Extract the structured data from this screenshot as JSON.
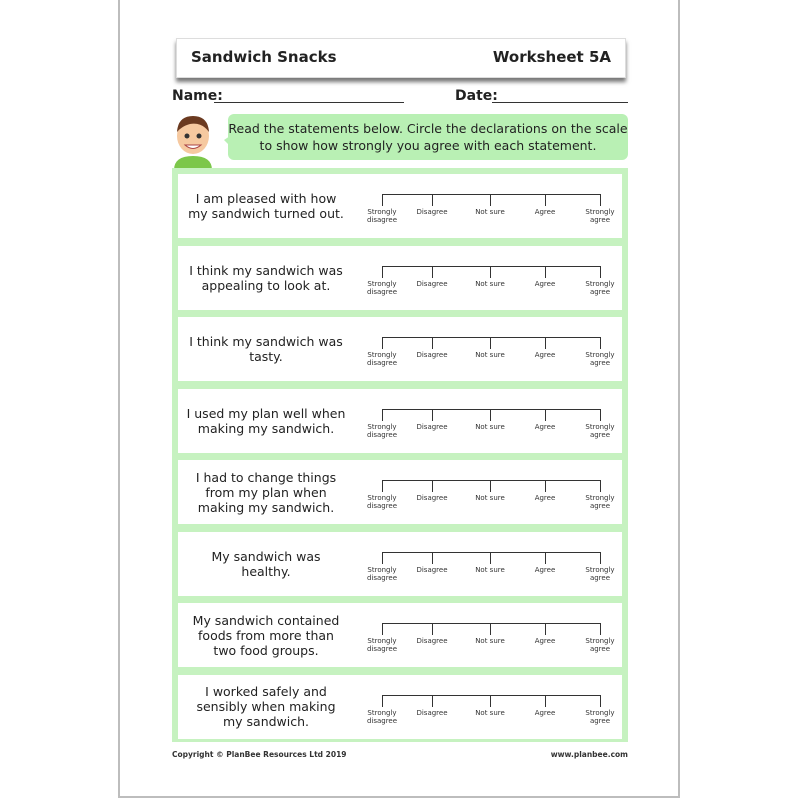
{
  "header": {
    "title": "Sandwich Snacks",
    "worksheet": "Worksheet 5A"
  },
  "fields": {
    "name_label": "Name:",
    "date_label": "Date:"
  },
  "instructions": "Read the statements below. Circle the declarations on the scale to show how strongly you agree with each statement.",
  "scale_options": [
    "Strongly disagree",
    "Disagree",
    "Not sure",
    "Agree",
    "Strongly agree"
  ],
  "statements": [
    "I am pleased with how my sandwich turned out.",
    "I think my sandwich was appealing to look at.",
    "I think my sandwich was tasty.",
    "I used my plan well when making my sandwich.",
    "I had to change things from my plan when making my sandwich.",
    "My sandwich was healthy.",
    "My sandwich contained foods from more than two food groups.",
    "I worked safely and sensibly when making my sandwich."
  ],
  "footer": {
    "copyright": "Copyright © PlanBee Resources Ltd 2019",
    "website": "www.planbee.com"
  },
  "colors": {
    "panel": "#c6f2c0",
    "bubble": "#b9f0b4"
  }
}
